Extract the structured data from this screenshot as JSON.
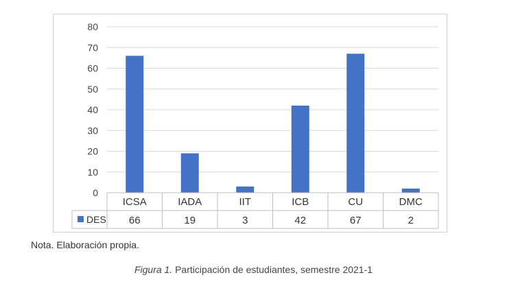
{
  "chart_data": {
    "type": "bar",
    "categories": [
      "ICSA",
      "IADA",
      "IIT",
      "ICB",
      "CU",
      "DMC"
    ],
    "series": [
      {
        "name": "DES",
        "values": [
          66,
          19,
          3,
          42,
          67,
          2
        ],
        "color": "#4472C4"
      }
    ],
    "ylim": [
      0,
      80
    ],
    "yticks": [
      0,
      10,
      20,
      30,
      40,
      50,
      60,
      70,
      80
    ],
    "grid": true,
    "legend": "data-table-left",
    "data_table": true
  },
  "note": "Nota. Elaboración propia.",
  "caption": {
    "figure_label": "Figura 1.",
    "text": " Participación de estudiantes, semestre 2021-1"
  }
}
